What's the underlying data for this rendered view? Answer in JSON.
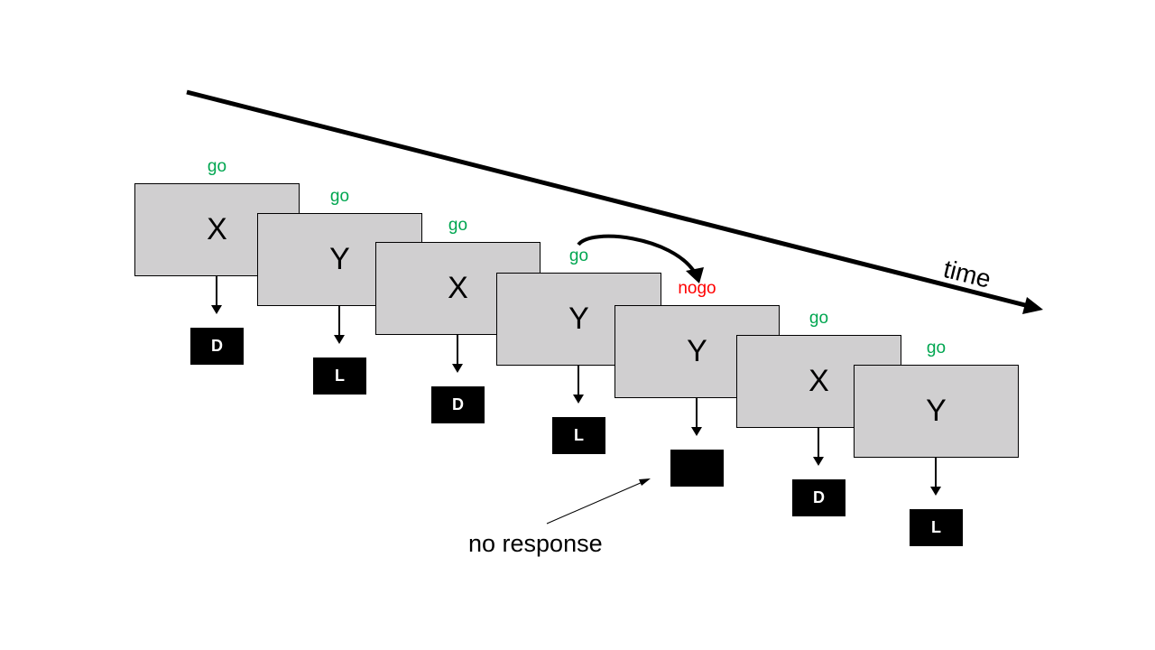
{
  "diagram": {
    "axis_label": "time",
    "annotation": "no response",
    "trials": [
      {
        "stimulus": "X",
        "cue": "go",
        "cue_type": "go",
        "response": "D"
      },
      {
        "stimulus": "Y",
        "cue": "go",
        "cue_type": "go",
        "response": "L"
      },
      {
        "stimulus": "X",
        "cue": "go",
        "cue_type": "go",
        "response": "D"
      },
      {
        "stimulus": "Y",
        "cue": "go",
        "cue_type": "go",
        "response": "L"
      },
      {
        "stimulus": "Y",
        "cue": "nogo",
        "cue_type": "nogo",
        "response": ""
      },
      {
        "stimulus": "X",
        "cue": "go",
        "cue_type": "go",
        "response": "D"
      },
      {
        "stimulus": "Y",
        "cue": "go",
        "cue_type": "go",
        "response": "L"
      }
    ],
    "colors": {
      "go": "#00a650",
      "nogo": "#ff0000",
      "stimulus_fill": "#d0cfd0",
      "response_fill": "#000000"
    }
  }
}
